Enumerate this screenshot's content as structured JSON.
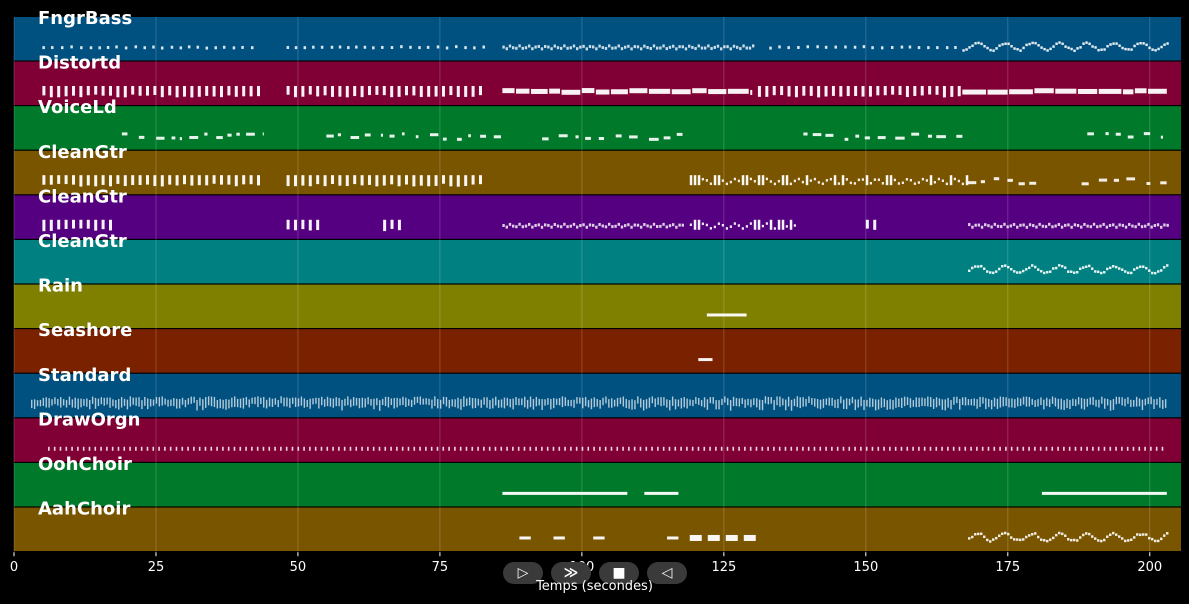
{
  "chart_data": {
    "type": "piano-roll",
    "xlabel": "Temps (secondes)",
    "xlim": [
      0,
      205.5
    ],
    "xticks": [
      0,
      25,
      50,
      75,
      100,
      125,
      150,
      175,
      200
    ],
    "grid": true,
    "tracks": [
      {
        "name": "FngrBass",
        "color": "#005080",
        "row": "short",
        "segments": [
          [
            5,
            43,
            "dots"
          ],
          [
            48,
            83,
            "dots"
          ],
          [
            86,
            130,
            "dense"
          ],
          [
            133,
            167,
            "dots"
          ],
          [
            167,
            203,
            "wavy"
          ]
        ]
      },
      {
        "name": "Distortd",
        "color": "#800035",
        "row": "block",
        "segments": [
          [
            5,
            43,
            "bars"
          ],
          [
            48,
            83,
            "bars"
          ],
          [
            86,
            130,
            "thick"
          ],
          [
            131,
            167,
            "bars"
          ],
          [
            167,
            203,
            "thick"
          ]
        ]
      },
      {
        "name": "VoiceLd",
        "color": "#007a2a",
        "row": "short",
        "segments": [
          [
            19,
            44,
            "sparse"
          ],
          [
            55,
            86,
            "sparse"
          ],
          [
            93,
            119,
            "sparse"
          ],
          [
            139,
            167,
            "sparse"
          ],
          [
            189,
            203,
            "sparse"
          ]
        ]
      },
      {
        "name": "CleanGtr",
        "color": "#7a5500",
        "row": "block",
        "segments": [
          [
            5,
            44,
            "bars"
          ],
          [
            48,
            83,
            "bars"
          ],
          [
            119,
            168,
            "mixed"
          ],
          [
            168,
            180,
            "sparse"
          ],
          [
            188,
            203,
            "sparse"
          ]
        ]
      },
      {
        "name": "CleanGtr",
        "color": "#540080",
        "row": "block",
        "segments": [
          [
            5,
            18,
            "bars"
          ],
          [
            48,
            54,
            "bars"
          ],
          [
            65,
            68,
            "bars"
          ],
          [
            86,
            118,
            "dense"
          ],
          [
            119,
            138,
            "mixed"
          ],
          [
            150,
            152,
            "bars"
          ],
          [
            168,
            203,
            "dense"
          ]
        ]
      },
      {
        "name": "CleanGtr",
        "color": "#008080",
        "row": "short",
        "segments": [
          [
            168,
            203,
            "wavy"
          ]
        ]
      },
      {
        "name": "Rain",
        "color": "#808000",
        "row": "single",
        "segments": [
          [
            122,
            129,
            "line"
          ]
        ]
      },
      {
        "name": "Seashore",
        "color": "#7a2200",
        "row": "single",
        "segments": [
          [
            120.5,
            123,
            "line"
          ]
        ]
      },
      {
        "name": "Standard",
        "color": "#005080",
        "row": "block",
        "segments": [
          [
            3,
            203,
            "drums"
          ]
        ]
      },
      {
        "name": "DrawOrgn",
        "color": "#800035",
        "row": "short",
        "segments": [
          [
            6,
            203,
            "organ"
          ]
        ]
      },
      {
        "name": "OohChoir",
        "color": "#007a2a",
        "row": "short",
        "segments": [
          [
            86,
            108,
            "line"
          ],
          [
            111,
            117,
            "line"
          ],
          [
            181,
            203,
            "line"
          ]
        ]
      },
      {
        "name": "AahChoir",
        "color": "#7a5500",
        "row": "short",
        "segments": [
          [
            89,
            91,
            "line"
          ],
          [
            95,
            97,
            "line"
          ],
          [
            102,
            104,
            "line"
          ],
          [
            115,
            117,
            "line"
          ],
          [
            119,
            130,
            "chunks"
          ],
          [
            168,
            203,
            "wavy"
          ]
        ]
      }
    ]
  },
  "controls": {
    "play": "▷",
    "forward": "≫",
    "stop": "■",
    "back": "◁"
  }
}
